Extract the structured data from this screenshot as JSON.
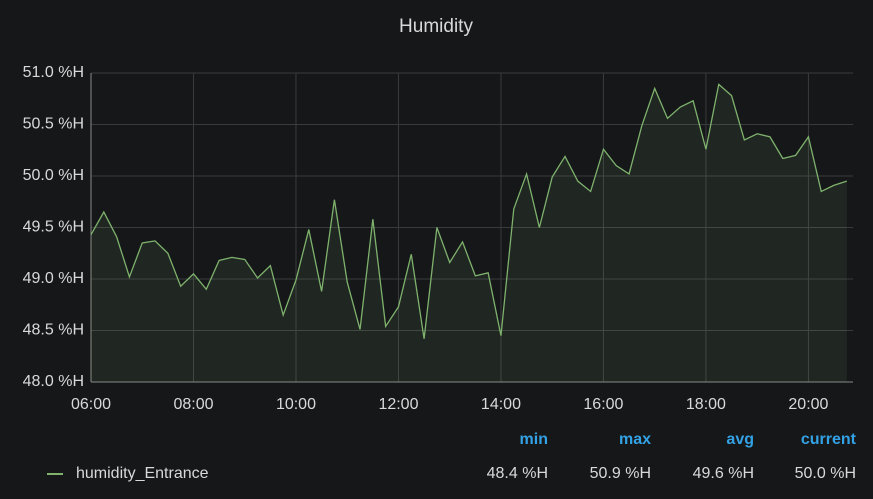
{
  "chart_data": {
    "type": "line",
    "title": "Humidity",
    "x": [
      6,
      6.25,
      6.5,
      6.75,
      7,
      7.25,
      7.5,
      7.75,
      8,
      8.25,
      8.5,
      8.75,
      9,
      9.25,
      9.5,
      9.75,
      10,
      10.25,
      10.5,
      10.75,
      11,
      11.25,
      11.5,
      11.75,
      12,
      12.25,
      12.5,
      12.75,
      13,
      13.25,
      13.5,
      13.75,
      14,
      14.25,
      14.5,
      14.75,
      15,
      15.25,
      15.5,
      15.75,
      16,
      16.25,
      16.5,
      16.75,
      17,
      17.25,
      17.5,
      17.75,
      18,
      18.25,
      18.5,
      18.75,
      19,
      19.25,
      19.5,
      19.75,
      20,
      20.25,
      20.5,
      20.75
    ],
    "series": [
      {
        "name": "humidity_Entrance",
        "color": "#7eb26d",
        "values": [
          49.43,
          49.65,
          49.41,
          49.02,
          49.35,
          49.37,
          49.25,
          48.93,
          49.05,
          48.9,
          49.18,
          49.21,
          49.19,
          49.01,
          49.13,
          48.65,
          48.99,
          49.48,
          48.88,
          49.77,
          48.97,
          48.51,
          49.58,
          48.54,
          48.73,
          49.24,
          48.42,
          49.5,
          49.16,
          49.36,
          49.03,
          49.06,
          48.45,
          49.68,
          50.02,
          49.5,
          49.99,
          50.19,
          49.95,
          49.85,
          50.26,
          50.1,
          50.02,
          50.49,
          50.85,
          50.56,
          50.67,
          50.73,
          50.26,
          50.89,
          50.78,
          50.35,
          50.41,
          50.38,
          50.17,
          50.2,
          50.38,
          49.85,
          49.91,
          49.95
        ]
      }
    ],
    "xlim": [
      6,
      20.87
    ],
    "xticks": [
      {
        "value": 6,
        "label": "06:00"
      },
      {
        "value": 8,
        "label": "08:00"
      },
      {
        "value": 10,
        "label": "10:00"
      },
      {
        "value": 12,
        "label": "12:00"
      },
      {
        "value": 14,
        "label": "14:00"
      },
      {
        "value": 16,
        "label": "16:00"
      },
      {
        "value": 18,
        "label": "18:00"
      },
      {
        "value": 20,
        "label": "20:00"
      }
    ],
    "ylim": [
      48,
      51
    ],
    "yticks": [
      {
        "value": 48,
        "label": "48.0 %H"
      },
      {
        "value": 48.5,
        "label": "48.5 %H"
      },
      {
        "value": 49,
        "label": "49.0 %H"
      },
      {
        "value": 49.5,
        "label": "49.5 %H"
      },
      {
        "value": 50,
        "label": "50.0 %H"
      },
      {
        "value": 50.5,
        "label": "50.5 %H"
      },
      {
        "value": 51,
        "label": "51.0 %H"
      }
    ],
    "grid": true,
    "legend": {
      "headers": [
        "min",
        "max",
        "avg",
        "current"
      ],
      "values": [
        "48.4 %H",
        "50.9 %H",
        "49.6 %H",
        "50.0 %H"
      ]
    }
  }
}
